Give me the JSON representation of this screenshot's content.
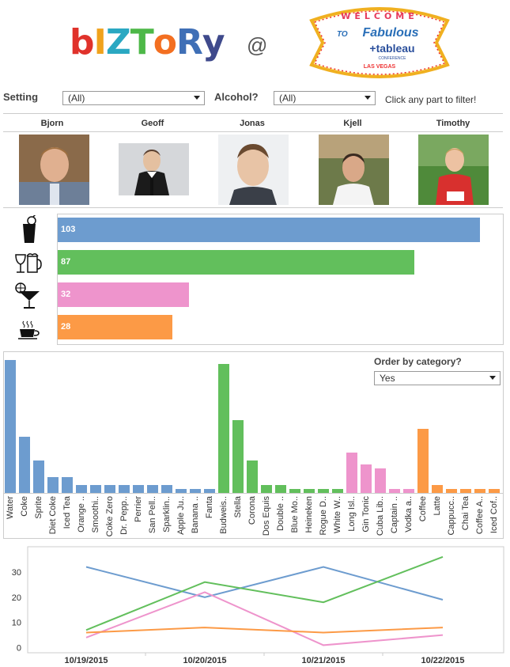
{
  "header": {
    "logo_letters": [
      {
        "ch": "b",
        "color": "#e0322b"
      },
      {
        "ch": "I",
        "color": "#f0a21c"
      },
      {
        "ch": "Z",
        "color": "#2aa8c2"
      },
      {
        "ch": "T",
        "color": "#4db848"
      },
      {
        "ch": "o",
        "color": "#f36f21"
      },
      {
        "ch": "R",
        "color": "#3f6fb6"
      },
      {
        "ch": "y",
        "color": "#3f4a8c"
      }
    ],
    "at_symbol": "@",
    "sign": {
      "welcome": "WELCOME",
      "to": "TO",
      "fabulous": "Fabulous",
      "brand": "+tableau",
      "conference": "CONFERENCE",
      "city": "LAS VEGAS"
    }
  },
  "filters": {
    "setting_label": "Setting",
    "setting_value": "(All)",
    "alcohol_label": "Alcohol?",
    "alcohol_value": "(All)",
    "hint": "Click any part to filter!"
  },
  "people": [
    {
      "name": "Bjorn"
    },
    {
      "name": "Geoff"
    },
    {
      "name": "Jonas"
    },
    {
      "name": "Kjell"
    },
    {
      "name": "Timothy"
    }
  ],
  "summary": {
    "max": 110,
    "categories": [
      {
        "icon": "soft-drink-icon",
        "value": "103",
        "count": 103,
        "color": "#6d9ccf"
      },
      {
        "icon": "beer-wine-icon",
        "value": "87",
        "count": 87,
        "color": "#62bf5c"
      },
      {
        "icon": "cocktail-icon",
        "value": "32",
        "count": 32,
        "color": "#ee94cc"
      },
      {
        "icon": "coffee-cup-icon",
        "value": "28",
        "count": 28,
        "color": "#fc9a46"
      }
    ]
  },
  "order": {
    "label": "Order by category?",
    "value": "Yes"
  },
  "chart_data": [
    {
      "type": "bar",
      "categories": [
        "Water",
        "Coke",
        "Sprite",
        "Diet Coke",
        "Iced Tea",
        "Orange ..",
        "Smoothi..",
        "Coke Zero",
        "Dr. Pepp..",
        "Perrier",
        "San Pell..",
        "Sparklin..",
        "Apple Ju..",
        "Banana ..",
        "Fanta",
        "Budweis..",
        "Stella",
        "Corona",
        "Dos Equis",
        "Double ..",
        "Blue Mo..",
        "Heineken",
        "Rogue D..",
        "White W..",
        "Long Isl..",
        "Gin Tonic",
        "Cuba Lib..",
        "Captain ..",
        "Vodka a..",
        "Coffee",
        "Latte",
        "Cappucc..",
        "Chai Tea",
        "Coffee A..",
        "Iced Cof.."
      ],
      "values": [
        33,
        14,
        8,
        4,
        4,
        2,
        2,
        2,
        2,
        2,
        2,
        2,
        1,
        1,
        1,
        32,
        18,
        8,
        2,
        2,
        1,
        1,
        1,
        1,
        10,
        7,
        6,
        1,
        1,
        16,
        2,
        1,
        1,
        1,
        1
      ],
      "colors": [
        "#6d9ccf",
        "#6d9ccf",
        "#6d9ccf",
        "#6d9ccf",
        "#6d9ccf",
        "#6d9ccf",
        "#6d9ccf",
        "#6d9ccf",
        "#6d9ccf",
        "#6d9ccf",
        "#6d9ccf",
        "#6d9ccf",
        "#6d9ccf",
        "#6d9ccf",
        "#6d9ccf",
        "#62bf5c",
        "#62bf5c",
        "#62bf5c",
        "#62bf5c",
        "#62bf5c",
        "#62bf5c",
        "#62bf5c",
        "#62bf5c",
        "#62bf5c",
        "#ee94cc",
        "#ee94cc",
        "#ee94cc",
        "#ee94cc",
        "#ee94cc",
        "#fc9a46",
        "#fc9a46",
        "#fc9a46",
        "#fc9a46",
        "#fc9a46",
        "#fc9a46"
      ],
      "ylim": [
        0,
        33
      ]
    },
    {
      "type": "line",
      "x": [
        "10/19/2015",
        "10/20/2015",
        "10/21/2015",
        "10/22/2015"
      ],
      "series": [
        {
          "values": [
            32,
            20,
            32,
            19
          ],
          "color": "#6d9ccf"
        },
        {
          "values": [
            7,
            26,
            18,
            36
          ],
          "color": "#62bf5c"
        },
        {
          "values": [
            4,
            22,
            1,
            5
          ],
          "color": "#ee94cc"
        },
        {
          "values": [
            6,
            8,
            6,
            8
          ],
          "color": "#fc9a46"
        }
      ],
      "yticks": [
        "0",
        "10",
        "20",
        "30"
      ],
      "ylim": [
        -2,
        40
      ]
    }
  ]
}
